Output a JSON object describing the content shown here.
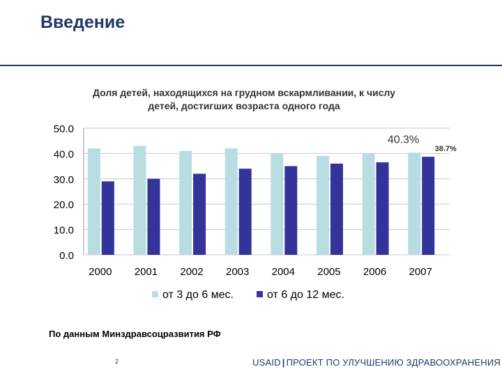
{
  "slide": {
    "title": "Введение",
    "source": "По данным Минздравсоцразвития РФ",
    "page_number": "2",
    "footer_brand": "USAID",
    "footer_project": "ПРОЕКТ ПО УЛУЧШЕНИЮ ЗДРАВООХРАНЕНИЯ"
  },
  "chart_data": {
    "type": "bar",
    "title": "Доля детей, находящихся на грудном вскармливании, к числу детей, достигших возраста одного года",
    "categories": [
      "2000",
      "2001",
      "2002",
      "2003",
      "2004",
      "2005",
      "2006",
      "2007"
    ],
    "series": [
      {
        "name": "от 3 до 6 мес.",
        "color": "#b7dde3",
        "values": [
          42.0,
          43.0,
          41.0,
          42.0,
          40.0,
          39.0,
          40.0,
          40.3
        ]
      },
      {
        "name": "от 6 до 12 мес.",
        "color": "#333399",
        "values": [
          29.0,
          30.0,
          32.0,
          34.0,
          35.0,
          36.0,
          36.5,
          38.7
        ]
      }
    ],
    "ylim": [
      0,
      50
    ],
    "yticks": [
      "0.0",
      "10.0",
      "20.0",
      "30.0",
      "40.0",
      "50.0"
    ],
    "annotations": [
      {
        "text": "40.3%",
        "series": 0,
        "index": 7
      },
      {
        "text": "38.7%",
        "series": 1,
        "index": 7
      }
    ],
    "grid": true,
    "legend": "bottom"
  }
}
